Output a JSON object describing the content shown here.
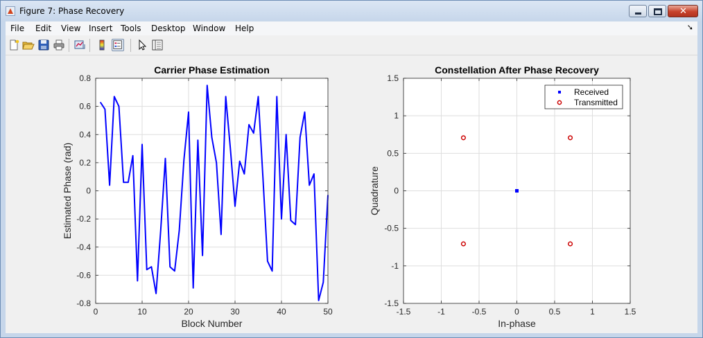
{
  "window": {
    "title": "Figure 7: Phase Recovery"
  },
  "menu": [
    "File",
    "Edit",
    "View",
    "Insert",
    "Tools",
    "Desktop",
    "Window",
    "Help"
  ],
  "toolbar": [
    "new-figure-icon",
    "open-file-icon",
    "save-icon",
    "print-icon",
    "link-plot-icon",
    "colorbar-icon",
    "legend-icon",
    "pointer-icon",
    "property-inspector-icon"
  ],
  "chart_data": [
    {
      "type": "line",
      "title": "Carrier Phase Estimation",
      "xlabel": "Block Number",
      "ylabel": "Estimated Phase (rad)",
      "xlim": [
        0,
        50
      ],
      "ylim": [
        -0.8,
        0.8
      ],
      "xticks": [
        "0",
        "10",
        "20",
        "30",
        "40",
        "50"
      ],
      "yticks": [
        "-0.8",
        "-0.6",
        "-0.4",
        "-0.2",
        "0",
        "0.2",
        "0.4",
        "0.6",
        "0.8"
      ],
      "grid": true,
      "color": "#0000ff",
      "x": [
        1,
        2,
        3,
        4,
        5,
        6,
        7,
        8,
        9,
        10,
        11,
        12,
        13,
        14,
        15,
        16,
        17,
        18,
        19,
        20,
        21,
        22,
        23,
        24,
        25,
        26,
        27,
        28,
        29,
        30,
        31,
        32,
        33,
        34,
        35,
        36,
        37,
        38,
        39,
        40,
        41,
        42,
        43,
        44,
        45,
        46,
        47,
        48,
        49,
        50
      ],
      "y": [
        0.63,
        0.58,
        0.04,
        0.67,
        0.6,
        0.06,
        0.06,
        0.25,
        -0.64,
        0.33,
        -0.56,
        -0.54,
        -0.73,
        -0.28,
        0.23,
        -0.54,
        -0.57,
        -0.28,
        0.22,
        0.56,
        -0.69,
        0.36,
        -0.46,
        0.75,
        0.38,
        0.2,
        -0.31,
        0.67,
        0.3,
        -0.11,
        0.21,
        0.12,
        0.47,
        0.41,
        0.67,
        0.1,
        -0.5,
        -0.57,
        0.67,
        -0.2,
        0.4,
        -0.21,
        -0.24,
        0.38,
        0.56,
        0.04,
        0.12,
        -0.78,
        -0.65,
        -0.03
      ]
    },
    {
      "type": "scatter",
      "title": "Constellation After Phase Recovery",
      "xlabel": "In-phase",
      "ylabel": "Quadrature",
      "xlim": [
        -1.5,
        1.5
      ],
      "ylim": [
        -1.5,
        1.5
      ],
      "xticks": [
        "-1.5",
        "-1",
        "-0.5",
        "0",
        "0.5",
        "1",
        "1.5"
      ],
      "yticks": [
        "-1.5",
        "-1",
        "-0.5",
        "0",
        "0.5",
        "1",
        "1.5"
      ],
      "grid": true,
      "legend_position": "top-right",
      "series": [
        {
          "name": "Received",
          "marker": "square",
          "color": "#0000ff",
          "points": [
            [
              0,
              0
            ]
          ]
        },
        {
          "name": "Transmitted",
          "marker": "circle",
          "color": "#cc0000",
          "points": [
            [
              -0.707,
              0.707
            ],
            [
              0.707,
              0.707
            ],
            [
              -0.707,
              -0.707
            ],
            [
              0.707,
              -0.707
            ]
          ]
        }
      ]
    }
  ]
}
